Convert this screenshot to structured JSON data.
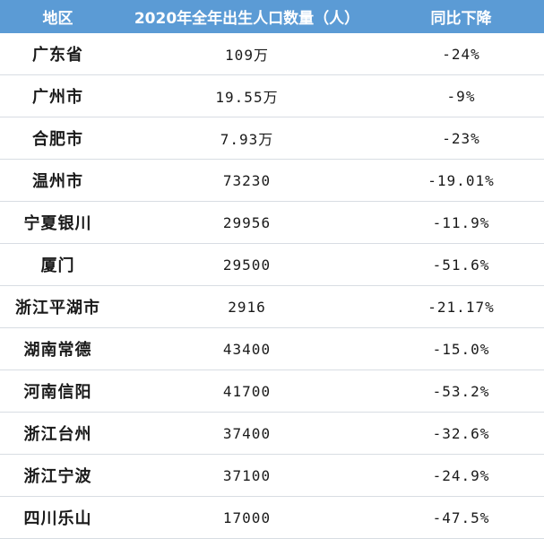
{
  "table": {
    "headers": [
      "地区",
      "2020年全年出生人口数量（人）",
      "同比下降"
    ],
    "rows": [
      {
        "region": "广东省",
        "births": "109万",
        "change": "-24%"
      },
      {
        "region": "广州市",
        "births": "19.55万",
        "change": "-9%"
      },
      {
        "region": "合肥市",
        "births": "7.93万",
        "change": "-23%"
      },
      {
        "region": "温州市",
        "births": "73230",
        "change": "-19.01%"
      },
      {
        "region": "宁夏银川",
        "births": "29956",
        "change": "-11.9%"
      },
      {
        "region": "厦门",
        "births": "29500",
        "change": "-51.6%"
      },
      {
        "region": "浙江平湖市",
        "births": "2916",
        "change": "-21.17%"
      },
      {
        "region": "湖南常德",
        "births": "43400",
        "change": "-15.0%"
      },
      {
        "region": "河南信阳",
        "births": "41700",
        "change": "-53.2%"
      },
      {
        "region": "浙江台州",
        "births": "37400",
        "change": "-32.6%"
      },
      {
        "region": "浙江宁波",
        "births": "37100",
        "change": "-24.9%"
      },
      {
        "region": "四川乐山",
        "births": "17000",
        "change": "-47.5%"
      }
    ]
  }
}
